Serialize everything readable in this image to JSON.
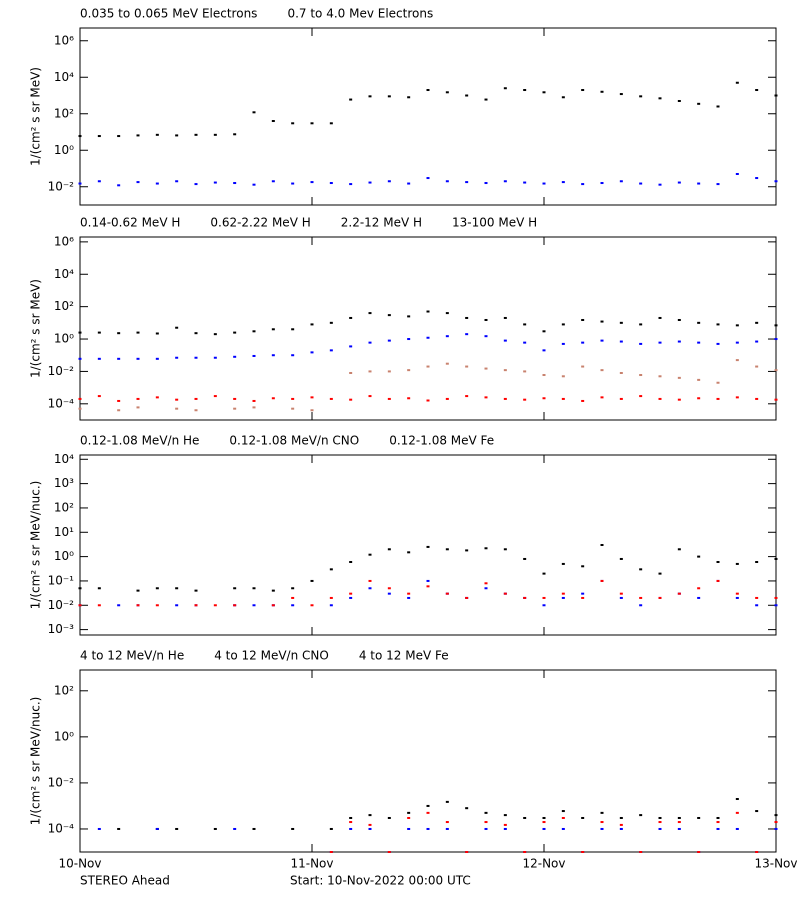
{
  "chart_data": [
    {
      "type": "scatter",
      "log_scale": true,
      "ylabel": "1/(cm² s sr MeV)",
      "xlim": [
        0,
        72
      ],
      "ylim": [
        0.001,
        5000000
      ],
      "yticks": [
        {
          "value": 0.01,
          "label": "10⁻²"
        },
        {
          "value": 1,
          "label": "10⁰"
        },
        {
          "value": 100,
          "label": "10²"
        },
        {
          "value": 10000,
          "label": "10⁴"
        },
        {
          "value": 1000000,
          "label": "10⁶"
        }
      ],
      "x": [
        0,
        2,
        4,
        6,
        8,
        10,
        12,
        14,
        16,
        18,
        20,
        22,
        24,
        26,
        28,
        30,
        32,
        34,
        36,
        38,
        40,
        42,
        44,
        46,
        48,
        50,
        52,
        54,
        56,
        58,
        60,
        62,
        64,
        66,
        68,
        70,
        72
      ],
      "series": [
        {
          "name": "0.035 to 0.065 MeV Electrons",
          "color": "#000000",
          "values": [
            6,
            6,
            6,
            6.5,
            7,
            6.5,
            7,
            7,
            7.5,
            120,
            40,
            30,
            30,
            30,
            600,
            900,
            900,
            800,
            2000,
            1500,
            1000,
            600,
            2500,
            2000,
            1500,
            800,
            2000,
            1600,
            1200,
            900,
            700,
            500,
            350,
            250,
            5000,
            2000,
            1000
          ]
        },
        {
          "name": "0.7 to 4.0 Mev Electrons",
          "color": "#0000ff",
          "values": [
            0.015,
            0.02,
            0.012,
            0.018,
            0.015,
            0.02,
            0.014,
            0.017,
            0.016,
            0.013,
            0.02,
            0.015,
            0.018,
            0.016,
            0.014,
            0.017,
            0.02,
            0.015,
            0.03,
            0.02,
            0.018,
            0.016,
            0.02,
            0.017,
            0.015,
            0.018,
            0.014,
            0.016,
            0.02,
            0.015,
            0.013,
            0.017,
            0.015,
            0.014,
            0.05,
            0.03,
            0.02
          ]
        }
      ]
    },
    {
      "type": "scatter",
      "log_scale": true,
      "ylabel": "1/(cm² s sr MeV)",
      "xlim": [
        0,
        72
      ],
      "ylim": [
        1e-05,
        2000000
      ],
      "yticks": [
        {
          "value": 0.0001,
          "label": "10⁻⁴"
        },
        {
          "value": 0.01,
          "label": "10⁻²"
        },
        {
          "value": 1,
          "label": "10⁰"
        },
        {
          "value": 100,
          "label": "10²"
        },
        {
          "value": 10000,
          "label": "10⁴"
        },
        {
          "value": 1000000,
          "label": "10⁶"
        }
      ],
      "x": [
        0,
        2,
        4,
        6,
        8,
        10,
        12,
        14,
        16,
        18,
        20,
        22,
        24,
        26,
        28,
        30,
        32,
        34,
        36,
        38,
        40,
        42,
        44,
        46,
        48,
        50,
        52,
        54,
        56,
        58,
        60,
        62,
        64,
        66,
        68,
        70,
        72
      ],
      "series": [
        {
          "name": "0.14-0.62 MeV H",
          "color": "#000000",
          "values": [
            2.5,
            2.5,
            2.3,
            2.5,
            2.2,
            5,
            2.3,
            2,
            2.5,
            3,
            4,
            4,
            8,
            10,
            20,
            40,
            30,
            25,
            50,
            40,
            20,
            15,
            20,
            8,
            3,
            8,
            15,
            12,
            10,
            8,
            20,
            15,
            10,
            8,
            7,
            10,
            7
          ]
        },
        {
          "name": "0.62-2.22 MeV H",
          "color": "#0000ff",
          "values": [
            0.06,
            0.06,
            0.06,
            0.06,
            0.06,
            0.07,
            0.07,
            0.07,
            0.08,
            0.09,
            0.1,
            0.1,
            0.15,
            0.2,
            0.35,
            0.6,
            0.8,
            1,
            1.2,
            1.5,
            2,
            1.5,
            0.8,
            0.6,
            0.2,
            0.5,
            0.6,
            0.8,
            0.7,
            0.5,
            0.6,
            0.7,
            0.6,
            0.5,
            0.6,
            0.7,
            1
          ]
        },
        {
          "name": "2.2-12 MeV H",
          "color": "#c8826e",
          "values": [
            5e-05,
            null,
            4e-05,
            6e-05,
            null,
            5e-05,
            4e-05,
            null,
            5e-05,
            6e-05,
            null,
            5e-05,
            4e-05,
            null,
            0.008,
            0.01,
            0.01,
            0.012,
            0.02,
            0.03,
            0.02,
            0.015,
            0.012,
            0.01,
            0.006,
            0.005,
            0.02,
            0.012,
            0.008,
            0.006,
            0.005,
            0.004,
            0.003,
            0.002,
            0.05,
            0.02,
            0.012
          ]
        },
        {
          "name": "13-100 MeV H",
          "color": "#ff0000",
          "values": [
            0.0002,
            0.0003,
            0.00015,
            0.0002,
            0.00025,
            0.00018,
            0.0002,
            0.0003,
            0.0002,
            0.00015,
            0.00022,
            0.0002,
            0.00025,
            0.0002,
            0.00018,
            0.0003,
            0.0002,
            0.00022,
            0.00016,
            0.0002,
            0.0003,
            0.00025,
            0.0002,
            0.00018,
            0.00022,
            0.0002,
            0.00015,
            0.00025,
            0.0002,
            0.0003,
            0.0002,
            0.00018,
            0.00022,
            0.0002,
            0.00025,
            0.0002,
            0.00018
          ]
        }
      ]
    },
    {
      "type": "scatter",
      "log_scale": true,
      "ylabel": "1/(cm² s sr MeV/nuc.)",
      "xlim": [
        0,
        72
      ],
      "ylim": [
        0.0006,
        15000
      ],
      "yticks": [
        {
          "value": 0.001,
          "label": "10⁻³"
        },
        {
          "value": 0.01,
          "label": "10⁻²"
        },
        {
          "value": 0.1,
          "label": "10⁻¹"
        },
        {
          "value": 1,
          "label": "10⁰"
        },
        {
          "value": 10,
          "label": "10¹"
        },
        {
          "value": 100,
          "label": "10²"
        },
        {
          "value": 1000,
          "label": "10³"
        },
        {
          "value": 10000,
          "label": "10⁴"
        }
      ],
      "x": [
        0,
        2,
        4,
        6,
        8,
        10,
        12,
        14,
        16,
        18,
        20,
        22,
        24,
        26,
        28,
        30,
        32,
        34,
        36,
        38,
        40,
        42,
        44,
        46,
        48,
        50,
        52,
        54,
        56,
        58,
        60,
        62,
        64,
        66,
        68,
        70,
        72
      ],
      "series": [
        {
          "name": "0.12-1.08 MeV/n He",
          "color": "#000000",
          "values": [
            0.05,
            0.05,
            null,
            0.04,
            0.05,
            0.05,
            0.04,
            null,
            0.05,
            0.05,
            0.04,
            0.05,
            0.1,
            0.3,
            0.6,
            1.2,
            2,
            1.5,
            2.5,
            2,
            1.8,
            2.2,
            2,
            0.8,
            0.2,
            0.5,
            0.4,
            3,
            0.8,
            0.3,
            0.2,
            2,
            1,
            0.6,
            0.5,
            0.6,
            0.8
          ]
        },
        {
          "name": "0.12-1.08 MeV/n CNO",
          "color": "#0000ff",
          "values": [
            0.01,
            null,
            0.01,
            0.01,
            null,
            0.01,
            0.01,
            null,
            0.01,
            0.01,
            0.01,
            0.01,
            null,
            0.01,
            0.02,
            0.05,
            0.03,
            0.02,
            0.1,
            0.03,
            0.02,
            0.05,
            0.03,
            0.02,
            0.01,
            0.02,
            0.03,
            0.1,
            0.02,
            0.01,
            0.02,
            0.03,
            0.02,
            0.1,
            0.02,
            0.01,
            0.01
          ]
        },
        {
          "name": "0.12-1.08 MeV Fe",
          "color": "#ff0000",
          "values": [
            0.01,
            0.01,
            null,
            0.01,
            0.01,
            null,
            0.01,
            0.01,
            0.01,
            null,
            0.01,
            0.02,
            0.01,
            0.02,
            0.03,
            0.1,
            0.05,
            0.03,
            0.06,
            0.03,
            0.02,
            0.08,
            0.03,
            0.02,
            0.02,
            0.03,
            0.02,
            0.1,
            0.03,
            0.02,
            0.02,
            0.03,
            0.05,
            0.1,
            0.03,
            0.02,
            0.02
          ]
        }
      ]
    },
    {
      "type": "scatter",
      "log_scale": true,
      "ylabel": "1/(cm² s sr MeV/nuc.)",
      "xlim": [
        0,
        72
      ],
      "ylim": [
        1e-05,
        800
      ],
      "xticks": [
        {
          "value": 0,
          "label": "10-Nov"
        },
        {
          "value": 24,
          "label": "11-Nov"
        },
        {
          "value": 48,
          "label": "12-Nov"
        },
        {
          "value": 72,
          "label": "13-Nov"
        }
      ],
      "yticks": [
        {
          "value": 0.0001,
          "label": "10⁻⁴"
        },
        {
          "value": 0.01,
          "label": "10⁻²"
        },
        {
          "value": 1,
          "label": "10⁰"
        },
        {
          "value": 100,
          "label": "10²"
        }
      ],
      "x": [
        0,
        2,
        4,
        6,
        8,
        10,
        12,
        14,
        16,
        18,
        20,
        22,
        24,
        26,
        28,
        30,
        32,
        34,
        36,
        38,
        40,
        42,
        44,
        46,
        48,
        50,
        52,
        54,
        56,
        58,
        60,
        62,
        64,
        66,
        68,
        70,
        72
      ],
      "series": [
        {
          "name": "4 to 12 MeV/n He",
          "color": "#000000",
          "values": [
            null,
            null,
            0.0001,
            null,
            0.0001,
            0.0001,
            null,
            0.0001,
            null,
            0.0001,
            null,
            0.0001,
            null,
            0.0001,
            0.0003,
            0.0004,
            0.0003,
            0.0005,
            0.001,
            0.0015,
            0.0008,
            0.0005,
            0.0004,
            0.0003,
            0.0003,
            0.0006,
            0.0003,
            0.0005,
            0.0003,
            0.0004,
            0.0003,
            0.0003,
            0.0003,
            0.0003,
            0.002,
            0.0006,
            0.0004
          ]
        },
        {
          "name": "4 to 12 MeV/n CNO",
          "color": "#0000ff",
          "values": [
            null,
            0.0001,
            null,
            null,
            0.0001,
            null,
            null,
            null,
            0.0001,
            null,
            null,
            null,
            null,
            1e-05,
            0.0001,
            0.0001,
            1e-05,
            0.0001,
            0.0001,
            0.0001,
            1e-05,
            0.0001,
            0.0001,
            1e-05,
            0.0001,
            0.0001,
            1e-05,
            0.0001,
            0.0001,
            1e-05,
            0.0001,
            0.0001,
            1e-05,
            0.0001,
            0.0001,
            1e-05,
            0.0001
          ]
        },
        {
          "name": "4 to 12 MeV Fe",
          "color": "#ff0000",
          "values": [
            null,
            null,
            null,
            null,
            null,
            null,
            null,
            null,
            null,
            null,
            null,
            null,
            null,
            1e-05,
            0.0002,
            0.00015,
            1e-05,
            0.0003,
            0.0005,
            0.0002,
            1e-05,
            0.0002,
            0.00015,
            1e-05,
            0.0002,
            0.0003,
            1e-05,
            0.0002,
            0.00015,
            1e-05,
            0.0002,
            0.0002,
            1e-05,
            0.0002,
            0.0005,
            1e-05,
            0.0002
          ]
        }
      ]
    }
  ],
  "footer": {
    "spacecraft": "STEREO Ahead",
    "start": "Start: 10-Nov-2022 00:00 UTC"
  }
}
